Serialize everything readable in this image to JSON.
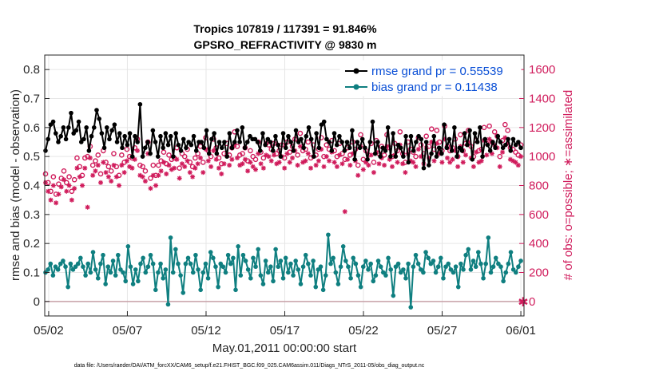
{
  "title_line1": "Tropics 107819 / 117391 = 91.846%",
  "title_line2": "GPSRO_REFRACTIVITY @ 9830 m",
  "left_axis_label": "rmse and bias (model - observation)",
  "right_axis_label": "# of obs: o=possible; ∗=assimilated",
  "x_axis_label": "May.01,2011 00:00:00 start",
  "footnote": "data file: /Users/raeder/DAI/ATM_forcXX/CAM6_setup/f.e21.FHIST_BGC.f09_025.CAM6assim.011/Diags_NTrS_2011-05/obs_diag_output.nc",
  "legend": {
    "rmse_label": "rmse grand pr = 0.55539",
    "bias_label": "bias grand pr = 0.11438"
  },
  "colors": {
    "rmse": "#000000",
    "bias": "#0f7f80",
    "count": "#d01c5c",
    "legend_text": "#0a4fd6",
    "zero_line": "#c8a0a8"
  },
  "chart_data": {
    "type": "line",
    "x_unit": "days since May.01,2011 00:00:00",
    "xlim": [
      0.75,
      31.2
    ],
    "ylim_left": [
      -0.05,
      0.85
    ],
    "ylim_right": [
      -100,
      1700
    ],
    "x_ticks": [
      1,
      6,
      11,
      16,
      21,
      26,
      31
    ],
    "x_tick_labels": [
      "05/02",
      "05/07",
      "05/12",
      "05/17",
      "05/22",
      "05/27",
      "06/01"
    ],
    "y_ticks_left": [
      0,
      0.1,
      0.2,
      0.3,
      0.4,
      0.5,
      0.6,
      0.7,
      0.8
    ],
    "y_tick_labels_left": [
      "0",
      "0.1",
      "0.2",
      "0.3",
      "0.4",
      "0.5",
      "0.6",
      "0.7",
      "0.8"
    ],
    "y_ticks_right": [
      0,
      200,
      400,
      600,
      800,
      1000,
      1200,
      1400,
      1600
    ],
    "y_tick_labels_right": [
      "0",
      "200",
      "400",
      "600",
      "800",
      "1000",
      "1200",
      "1400",
      "1600"
    ],
    "grid": true,
    "legend_position": "top-right",
    "series": [
      {
        "name": "rmse grand pr = 0.55539",
        "axis": "left",
        "marker": "filled-diamond",
        "values": [
          0.52,
          0.56,
          0.61,
          0.62,
          0.58,
          0.55,
          0.57,
          0.6,
          0.56,
          0.6,
          0.65,
          0.58,
          0.59,
          0.62,
          0.55,
          0.56,
          0.6,
          0.52,
          0.57,
          0.6,
          0.66,
          0.63,
          0.58,
          0.53,
          0.6,
          0.56,
          0.59,
          0.61,
          0.55,
          0.58,
          0.53,
          0.57,
          0.54,
          0.58,
          0.5,
          0.57,
          0.55,
          0.68,
          0.5,
          0.53,
          0.55,
          0.51,
          0.59,
          0.55,
          0.5,
          0.57,
          0.53,
          0.58,
          0.54,
          0.57,
          0.5,
          0.58,
          0.54,
          0.52,
          0.56,
          0.53,
          0.55,
          0.54,
          0.57,
          0.52,
          0.55,
          0.55,
          0.53,
          0.59,
          0.51,
          0.56,
          0.58,
          0.51,
          0.55,
          0.53,
          0.55,
          0.5,
          0.58,
          0.53,
          0.55,
          0.59,
          0.55,
          0.6,
          0.53,
          0.55,
          0.57,
          0.56,
          0.56,
          0.55,
          0.52,
          0.58,
          0.54,
          0.56,
          0.55,
          0.52,
          0.57,
          0.54,
          0.5,
          0.58,
          0.53,
          0.57,
          0.55,
          0.52,
          0.59,
          0.55,
          0.56,
          0.53,
          0.57,
          0.6,
          0.56,
          0.5,
          0.58,
          0.53,
          0.61,
          0.62,
          0.56,
          0.55,
          0.52,
          0.58,
          0.54,
          0.57,
          0.55,
          0.52,
          0.55,
          0.53,
          0.59,
          0.49,
          0.55,
          0.53,
          0.56,
          0.53,
          0.49,
          0.55,
          0.62,
          0.51,
          0.55,
          0.5,
          0.53,
          0.52,
          0.6,
          0.5,
          0.58,
          0.5,
          0.54,
          0.53,
          0.5,
          0.57,
          0.48,
          0.57,
          0.52,
          0.55,
          0.57,
          0.56,
          0.46,
          0.55,
          0.47,
          0.51,
          0.57,
          0.5,
          0.53,
          0.51,
          0.61,
          0.53,
          0.56,
          0.52,
          0.6,
          0.5,
          0.53,
          0.52,
          0.58,
          0.54,
          0.59,
          0.49,
          0.58,
          0.55,
          0.6,
          0.5,
          0.56,
          0.54,
          0.52,
          0.55,
          0.53,
          0.57,
          0.55,
          0.53,
          0.54,
          0.56,
          0.52,
          0.56,
          0.54,
          0.55,
          0.53
        ]
      },
      {
        "name": "bias grand pr = 0.11438",
        "axis": "left",
        "marker": "filled-circle",
        "values": [
          0.1,
          0.11,
          0.13,
          0.09,
          0.12,
          0.11,
          0.13,
          0.14,
          0.12,
          0.05,
          0.13,
          0.11,
          0.12,
          0.13,
          0.15,
          0.12,
          0.09,
          0.13,
          0.1,
          0.17,
          0.11,
          0.08,
          0.13,
          0.16,
          0.06,
          0.12,
          0.1,
          0.14,
          0.09,
          0.16,
          0.11,
          0.1,
          0.07,
          0.19,
          0.12,
          0.06,
          0.11,
          0.07,
          0.13,
          0.15,
          0.1,
          0.12,
          0.16,
          0.13,
          0.04,
          0.1,
          0.13,
          0.08,
          0.11,
          -0.01,
          0.22,
          0.1,
          0.18,
          0.13,
          0.09,
          0.03,
          0.13,
          0.15,
          0.13,
          0.1,
          0.16,
          0.11,
          0.04,
          0.1,
          0.13,
          0.08,
          0.17,
          0.15,
          0.12,
          0.05,
          0.13,
          0.12,
          0.1,
          0.16,
          0.13,
          0.15,
          0.04,
          0.19,
          0.09,
          0.16,
          0.14,
          0.11,
          0.08,
          0.15,
          0.12,
          0.18,
          0.09,
          0.06,
          0.14,
          0.1,
          0.12,
          0.07,
          0.18,
          0.12,
          0.14,
          0.08,
          0.15,
          0.1,
          0.13,
          0.09,
          0.14,
          0.11,
          0.06,
          0.12,
          0.16,
          0.13,
          0.09,
          0.14,
          0.05,
          0.11,
          0.12,
          0.04,
          0.09,
          0.23,
          0.13,
          0.15,
          0.1,
          0.06,
          0.12,
          0.19,
          0.14,
          0.12,
          0.08,
          0.15,
          0.13,
          0.09,
          0.05,
          0.12,
          0.14,
          0.11,
          0.13,
          0.07,
          0.09,
          0.14,
          0.12,
          0.1,
          0.09,
          0.15,
          0.11,
          0.02,
          0.12,
          0.13,
          0.1,
          0.11,
          0.08,
          0.13,
          -0.02,
          0.12,
          0.16,
          0.13,
          0.11,
          0.1,
          0.17,
          0.15,
          0.13,
          0.14,
          0.1,
          0.12,
          0.15,
          0.08,
          0.12,
          0.13,
          0.11,
          0.1,
          0.12,
          0.05,
          0.13,
          0.11,
          0.16,
          0.18,
          0.11,
          0.14,
          0.12,
          0.17,
          0.13,
          0.08,
          0.13,
          0.22,
          0.1,
          0.12,
          0.15,
          0.13,
          0.12,
          0.07,
          0.1,
          0.13,
          0.17,
          0.11,
          0.1,
          0.12,
          0.14
        ]
      },
      {
        "name": "possible",
        "axis": "right",
        "marker": "open-circle",
        "values": [
          880,
          820,
          760,
          860,
          740,
          810,
          850,
          900,
          820,
          860,
          760,
          840,
          990,
          930,
          870,
          990,
          1000,
          1070,
          940,
          970,
          1010,
          880,
          1040,
          960,
          930,
          900,
          1020,
          930,
          870,
          1010,
          960,
          1050,
          1000,
          990,
          1060,
          1120,
          940,
          930,
          900,
          1100,
          850,
          940,
          870,
          940,
          970,
          1030,
          950,
          1010,
          980,
          990,
          1060,
          920,
          1020,
          1000,
          1050,
          960,
          930,
          990,
          1020,
          1070,
          960,
          1130,
          1040,
          1000,
          1120,
          1060,
          990,
          950,
          1020,
          1090,
          1010,
          1060,
          1170,
          1070,
          1010,
          1020,
          1060,
          970,
          1040,
          1000,
          980,
          1100,
          1030,
          990,
          1090,
          1080,
          1050,
          1090,
          1020,
          1040,
          1080,
          990,
          1100,
          1030,
          1070,
          1120,
          1010,
          1160,
          1040,
          1050,
          1100,
          990,
          1080,
          1010,
          1050,
          1130,
          1000,
          1080,
          1050,
          1110,
          1040,
          1000,
          1090,
          1020,
          980,
          1060,
          1010,
          1100,
          1050,
          940,
          1150,
          980,
          1040,
          1010,
          1090,
          960,
          1110,
          1020,
          1070,
          1010,
          1150,
          1060,
          1000,
          1090,
          1040,
          1170,
          1020,
          960,
          1100,
          1050,
          1030,
          1000,
          1130,
          1080,
          1020,
          1140,
          1070,
          1190,
          1050,
          1180,
          1100,
          1040,
          1210,
          1070,
          1040,
          1060,
          1120,
          1000,
          1150,
          1040,
          1090,
          1180,
          1070,
          1000,
          1110,
          1040,
          1050,
          1200,
          1090,
          1210,
          1100,
          1170,
          1140,
          1000,
          1110,
          1220,
          1180,
          1060,
          1050,
          1030,
          1010,
          1080
        ]
      },
      {
        "name": "assimilated",
        "axis": "right",
        "marker": "asterisk",
        "values": [
          820,
          760,
          700,
          800,
          680,
          740,
          790,
          840,
          760,
          800,
          700,
          780,
          920,
          860,
          800,
          920,
          650,
          990,
          870,
          900,
          940,
          820,
          960,
          890,
          860,
          830,
          940,
          860,
          800,
          940,
          890,
          970,
          930,
          920,
          980,
          1040,
          870,
          860,
          830,
          1020,
          780,
          870,
          800,
          870,
          900,
          960,
          880,
          940,
          910,
          920,
          980,
          850,
          950,
          930,
          970,
          890,
          860,
          920,
          950,
          990,
          890,
          1050,
          970,
          930,
          1040,
          980,
          920,
          880,
          950,
          1010,
          940,
          980,
          1080,
          990,
          940,
          950,
          980,
          900,
          960,
          930,
          910,
          1020,
          950,
          920,
          1010,
          1000,
          970,
          1010,
          950,
          960,
          1000,
          920,
          1020,
          960,
          990,
          1040,
          940,
          1070,
          960,
          970,
          1020,
          920,
          1000,
          940,
          970,
          1050,
          930,
          1000,
          970,
          1030,
          960,
          930,
          1010,
          950,
          620,
          980,
          940,
          1020,
          970,
          870,
          1070,
          910,
          960,
          940,
          1010,
          890,
          1030,
          950,
          990,
          940,
          1070,
          980,
          930,
          1010,
          960,
          1080,
          950,
          890,
          1020,
          970,
          960,
          930,
          1050,
          1000,
          950,
          1060,
          990,
          1100,
          970,
          1090,
          1020,
          960,
          1120,
          990,
          960,
          980,
          1040,
          930,
          1070,
          960,
          1010,
          1100,
          990,
          930,
          1030,
          960,
          970,
          1110,
          1010,
          1120,
          1020,
          1080,
          1060,
          930,
          1030,
          1130,
          1090,
          980,
          970,
          960,
          940,
          1000
        ]
      }
    ]
  }
}
